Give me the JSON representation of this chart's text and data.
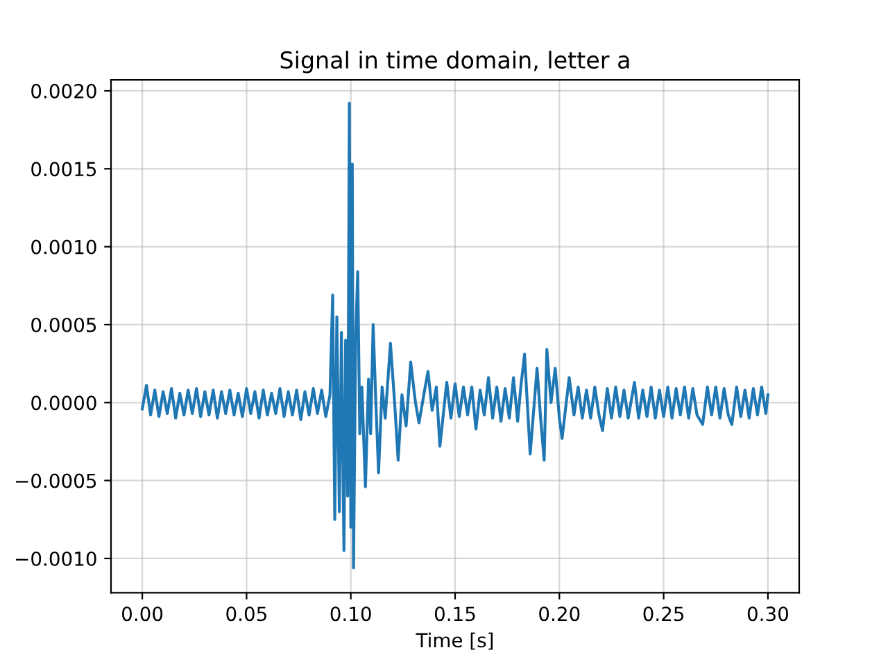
{
  "chart_data": {
    "type": "line",
    "title": "Signal in time domain, letter a",
    "xlabel": "Time [s]",
    "x": [
      0,
      0.002,
      0.004,
      0.006,
      0.008,
      0.01,
      0.012,
      0.014,
      0.016,
      0.018,
      0.02,
      0.022,
      0.024,
      0.026,
      0.028,
      0.03,
      0.032,
      0.034,
      0.036,
      0.038,
      0.04,
      0.042,
      0.044,
      0.046,
      0.048,
      0.05,
      0.052,
      0.054,
      0.056,
      0.058,
      0.06,
      0.062,
      0.064,
      0.066,
      0.068,
      0.07,
      0.072,
      0.074,
      0.076,
      0.078,
      0.08,
      0.082,
      0.084,
      0.086,
      0.088,
      0.09,
      0.0913,
      0.0923,
      0.0933,
      0.0945,
      0.0955,
      0.0967,
      0.0975,
      0.0985,
      0.0993,
      0.1,
      0.1007,
      0.1013,
      0.1023,
      0.1033,
      0.1043,
      0.1053,
      0.107,
      0.1085,
      0.1095,
      0.1107,
      0.112,
      0.1133,
      0.115,
      0.1165,
      0.119,
      0.121,
      0.1227,
      0.1245,
      0.1265,
      0.1287,
      0.131,
      0.1327,
      0.135,
      0.137,
      0.139,
      0.141,
      0.1427,
      0.146,
      0.148,
      0.15,
      0.152,
      0.154,
      0.156,
      0.158,
      0.16,
      0.162,
      0.164,
      0.166,
      0.168,
      0.17,
      0.172,
      0.174,
      0.176,
      0.178,
      0.18,
      0.1815,
      0.1833,
      0.186,
      0.1893,
      0.191,
      0.1927,
      0.194,
      0.196,
      0.198,
      0.2,
      0.2013,
      0.2047,
      0.207,
      0.209,
      0.211,
      0.213,
      0.215,
      0.217,
      0.219,
      0.2207,
      0.223,
      0.225,
      0.227,
      0.229,
      0.231,
      0.233,
      0.236,
      0.238,
      0.24,
      0.242,
      0.244,
      0.246,
      0.248,
      0.25,
      0.252,
      0.254,
      0.256,
      0.258,
      0.26,
      0.262,
      0.264,
      0.266,
      0.2687,
      0.271,
      0.273,
      0.275,
      0.277,
      0.279,
      0.281,
      0.2827,
      0.285,
      0.287,
      0.289,
      0.291,
      0.293,
      0.295,
      0.297,
      0.299,
      0.3
    ],
    "series": [
      {
        "color": "#1f77b4",
        "values": [
          -4e-05,
          0.00011,
          -8e-05,
          8e-05,
          -9e-05,
          7e-05,
          -7e-05,
          9e-05,
          -0.0001,
          6e-05,
          -8e-05,
          8e-05,
          -7e-05,
          9e-05,
          -9e-05,
          7e-05,
          -8e-05,
          8e-05,
          -0.0001,
          7e-05,
          -7e-05,
          8e-05,
          -8e-05,
          6e-05,
          -9e-05,
          9e-05,
          -7e-05,
          7e-05,
          -0.0001,
          8e-05,
          -8e-05,
          6e-05,
          -7e-05,
          9e-05,
          -9e-05,
          7e-05,
          -8e-05,
          8e-05,
          -0.00011,
          7e-05,
          -8e-05,
          9e-05,
          -7e-05,
          8e-05,
          -9e-05,
          5e-05,
          0.00069,
          -0.00075,
          0.00055,
          -0.0007,
          0.00045,
          -0.00095,
          0.0004,
          -0.0006,
          0.00192,
          -0.0008,
          0.00153,
          -0.00106,
          0.0004,
          0.00084,
          -0.0002,
          0.0001,
          -0.00054,
          0.00015,
          -0.0002,
          0.0005,
          0.0,
          -0.00045,
          0.0001,
          -0.0001,
          0.00038,
          0.0,
          -0.00037,
          5e-05,
          -0.00015,
          0.00026,
          0.0,
          -0.00013,
          5e-05,
          0.0002,
          -5e-05,
          0.0001,
          -0.00028,
          0.00013,
          -0.0001,
          0.00012,
          -9e-05,
          0.0001,
          -8e-05,
          0.0001,
          -0.00017,
          8e-05,
          -8e-05,
          0.00016,
          -0.0001,
          0.0001,
          -0.00012,
          9e-05,
          -0.0001,
          0.00016,
          -0.00012,
          0.0001,
          0.00031,
          -0.00033,
          0.00022,
          -0.0001,
          -0.00037,
          0.00034,
          0.0,
          0.00022,
          -0.0001,
          -0.00023,
          0.00016,
          -8e-05,
          0.0001,
          -0.0001,
          8e-05,
          -0.0001,
          0.0001,
          -8e-05,
          -0.00018,
          9e-05,
          -0.0001,
          0.0001,
          -9e-05,
          8e-05,
          -0.0001,
          0.00013,
          -0.0001,
          8e-05,
          -9e-05,
          0.0001,
          -0.0001,
          8e-05,
          -9e-05,
          0.0001,
          -0.0001,
          9e-05,
          -8e-05,
          0.0001,
          -0.0001,
          9e-05,
          -8e-05,
          -0.00014,
          0.0001,
          -8e-05,
          0.0001,
          -0.0001,
          9e-05,
          -8e-05,
          -0.00014,
          0.0001,
          -9e-05,
          8e-05,
          -0.0001,
          9e-05,
          -8e-05,
          0.0001,
          -7e-05,
          5e-05
        ]
      }
    ],
    "xlim": [
      -0.015,
      0.315
    ],
    "ylim": [
      -0.00122,
      0.00207
    ],
    "xticks": [
      {
        "value": 0,
        "label": "0.00"
      },
      {
        "value": 0.05,
        "label": "0.05"
      },
      {
        "value": 0.1,
        "label": "0.10"
      },
      {
        "value": 0.15,
        "label": "0.15"
      },
      {
        "value": 0.2,
        "label": "0.20"
      },
      {
        "value": 0.25,
        "label": "0.25"
      },
      {
        "value": 0.3,
        "label": "0.30"
      }
    ],
    "yticks": [
      {
        "value": -0.001,
        "label": "−0.0010"
      },
      {
        "value": -0.0005,
        "label": "−0.0005"
      },
      {
        "value": 0,
        "label": "0.0000"
      },
      {
        "value": 0.0005,
        "label": "0.0005"
      },
      {
        "value": 0.001,
        "label": "0.0010"
      },
      {
        "value": 0.0015,
        "label": "0.0015"
      },
      {
        "value": 0.002,
        "label": "0.0020"
      }
    ],
    "grid": true
  }
}
